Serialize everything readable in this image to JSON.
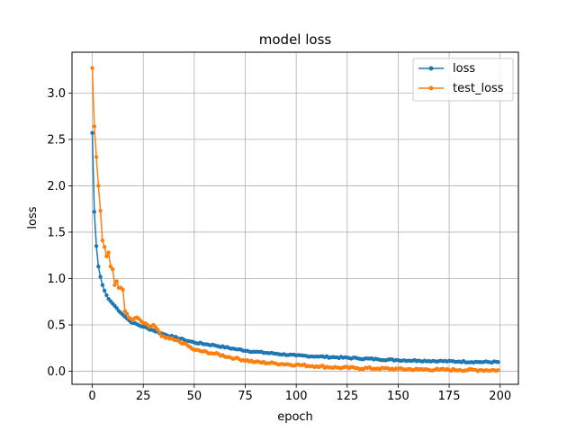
{
  "chart_data": {
    "type": "line",
    "title": "model loss",
    "xlabel": "epoch",
    "ylabel": "loss",
    "xlim": [
      -9.95,
      208.95
    ],
    "ylim": [
      -0.14,
      3.44
    ],
    "xticks": [
      0,
      25,
      50,
      75,
      100,
      125,
      150,
      175,
      200
    ],
    "yticks": [
      0.0,
      0.5,
      1.0,
      1.5,
      2.0,
      2.5,
      3.0
    ],
    "ytick_labels": [
      "0.0",
      "0.5",
      "1.0",
      "1.5",
      "2.0",
      "2.5",
      "3.0"
    ],
    "grid": true,
    "legend_position": "upper right",
    "series_keyframes": [
      {
        "name": "loss",
        "color": "#1f77b4",
        "marker": "dot",
        "keyframes": [
          [
            0,
            2.57
          ],
          [
            1,
            1.72
          ],
          [
            2,
            1.35
          ],
          [
            3,
            1.13
          ],
          [
            4,
            1.02
          ],
          [
            5,
            0.93
          ],
          [
            6,
            0.87
          ],
          [
            7,
            0.82
          ],
          [
            8,
            0.78
          ],
          [
            10,
            0.73
          ],
          [
            12,
            0.68
          ],
          [
            15,
            0.61
          ],
          [
            18,
            0.55
          ],
          [
            20,
            0.52
          ],
          [
            25,
            0.48
          ],
          [
            30,
            0.44
          ],
          [
            35,
            0.4
          ],
          [
            40,
            0.37
          ],
          [
            45,
            0.34
          ],
          [
            50,
            0.31
          ],
          [
            60,
            0.28
          ],
          [
            70,
            0.24
          ],
          [
            80,
            0.21
          ],
          [
            90,
            0.19
          ],
          [
            100,
            0.17
          ],
          [
            110,
            0.16
          ],
          [
            120,
            0.15
          ],
          [
            130,
            0.14
          ],
          [
            140,
            0.13
          ],
          [
            150,
            0.12
          ],
          [
            160,
            0.115
          ],
          [
            170,
            0.11
          ],
          [
            180,
            0.105
          ],
          [
            190,
            0.1
          ],
          [
            199,
            0.1
          ]
        ],
        "noise": 0.008
      },
      {
        "name": "test_loss",
        "color": "#ff7f0e",
        "marker": "dot",
        "keyframes": [
          [
            0,
            3.27
          ],
          [
            1,
            2.64
          ],
          [
            2,
            2.31
          ],
          [
            3,
            2.0
          ],
          [
            4,
            1.73
          ],
          [
            5,
            1.41
          ],
          [
            6,
            1.34
          ],
          [
            7,
            1.24
          ],
          [
            8,
            1.28
          ],
          [
            9,
            1.13
          ],
          [
            10,
            1.1
          ],
          [
            11,
            0.93
          ],
          [
            12,
            0.97
          ],
          [
            13,
            0.9
          ],
          [
            14,
            0.9
          ],
          [
            15,
            0.88
          ],
          [
            16,
            0.65
          ],
          [
            17,
            0.62
          ],
          [
            18,
            0.58
          ],
          [
            20,
            0.55
          ],
          [
            22,
            0.58
          ],
          [
            25,
            0.52
          ],
          [
            28,
            0.48
          ],
          [
            30,
            0.5
          ],
          [
            32,
            0.45
          ],
          [
            34,
            0.38
          ],
          [
            36,
            0.36
          ],
          [
            40,
            0.34
          ],
          [
            45,
            0.3
          ],
          [
            50,
            0.23
          ],
          [
            60,
            0.19
          ],
          [
            70,
            0.14
          ],
          [
            80,
            0.1
          ],
          [
            90,
            0.085
          ],
          [
            100,
            0.07
          ],
          [
            110,
            0.055
          ],
          [
            120,
            0.04
          ],
          [
            130,
            0.035
          ],
          [
            140,
            0.03
          ],
          [
            150,
            0.025
          ],
          [
            160,
            0.02
          ],
          [
            170,
            0.018
          ],
          [
            180,
            0.015
          ],
          [
            190,
            0.013
          ],
          [
            199,
            0.012
          ]
        ],
        "noise": 0.012
      }
    ],
    "n_points": 200
  }
}
